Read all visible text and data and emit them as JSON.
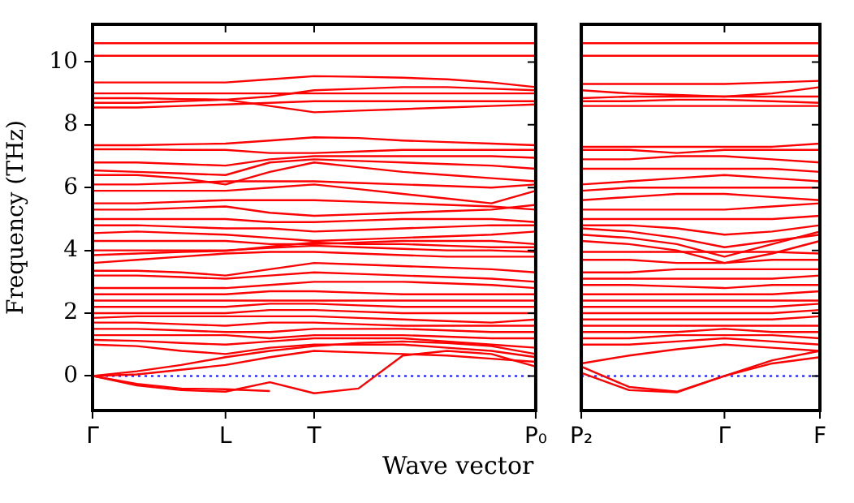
{
  "chart_data": [
    {
      "type": "line",
      "xlabel": "Wave vector",
      "ylabel": "Frequency (THz)",
      "categories": [
        "Γ",
        null,
        null,
        "L",
        null,
        "T",
        null,
        null,
        null,
        null,
        "P₀"
      ],
      "ylim": [
        -1.1,
        11.2
      ],
      "yticks": [
        0,
        2,
        4,
        6,
        8,
        10
      ],
      "marker": "none",
      "line_style": "solid",
      "ref_lines": [
        {
          "axis": "y",
          "value": 0,
          "color": "#0000ff",
          "line_style": "dotted"
        }
      ],
      "series": [
        {
          "color": "#ff0000",
          "values": [
            10.6,
            10.6,
            10.6,
            10.6,
            10.6,
            10.6,
            10.6,
            10.6,
            10.6,
            10.6,
            10.6
          ]
        },
        {
          "color": "#ff0000",
          "values": [
            10.2,
            10.2,
            10.2,
            10.2,
            10.2,
            10.2,
            10.2,
            10.2,
            10.2,
            10.2,
            10.2
          ]
        },
        {
          "color": "#ff0000",
          "values": [
            9.35,
            9.35,
            9.35,
            9.35,
            9.45,
            9.55,
            9.53,
            9.5,
            9.45,
            9.35,
            9.2
          ]
        },
        {
          "color": "#ff0000",
          "values": [
            9,
            9,
            9,
            9,
            9,
            9,
            9,
            9,
            9,
            9,
            9
          ]
        },
        {
          "color": "#ff0000",
          "values": [
            8.85,
            8.85,
            8.82,
            8.8,
            8.9,
            9.1,
            9.15,
            9.2,
            9.2,
            9.15,
            9.1
          ]
        },
        {
          "color": "#ff0000",
          "values": [
            8.7,
            8.7,
            8.75,
            8.8,
            8.6,
            8.4,
            8.45,
            8.5,
            8.55,
            8.6,
            8.65
          ]
        },
        {
          "color": "#ff0000",
          "values": [
            8.55,
            8.55,
            8.6,
            8.65,
            8.7,
            8.75,
            8.75,
            8.75,
            8.75,
            8.75,
            8.75
          ]
        },
        {
          "color": "#ff0000",
          "values": [
            7.35,
            7.35,
            7.38,
            7.4,
            7.5,
            7.6,
            7.58,
            7.5,
            7.45,
            7.4,
            7.35
          ]
        },
        {
          "color": "#ff0000",
          "values": [
            7.22,
            7.22,
            7.2,
            7.2,
            7.1,
            7.1,
            7.15,
            7.2,
            7.2,
            7.2,
            7.2
          ]
        },
        {
          "color": "#ff0000",
          "values": [
            6.8,
            6.8,
            6.75,
            6.7,
            6.9,
            7,
            7,
            7,
            7,
            7,
            6.95
          ]
        },
        {
          "color": "#ff0000",
          "values": [
            6.55,
            6.5,
            6.45,
            6.4,
            6.8,
            6.9,
            6.85,
            6.8,
            6.75,
            6.7,
            6.6
          ]
        },
        {
          "color": "#ff0000",
          "values": [
            6.4,
            6.4,
            6.3,
            6.1,
            6.5,
            6.8,
            6.65,
            6.5,
            6.4,
            6.3,
            6.2
          ]
        },
        {
          "color": "#ff0000",
          "values": [
            6.1,
            6.1,
            6.15,
            6.2,
            6.2,
            6.2,
            6.15,
            6.1,
            6.05,
            6,
            6.1
          ]
        },
        {
          "color": "#ff0000",
          "values": [
            5.9,
            5.9,
            5.9,
            5.9,
            6,
            6.1,
            5.95,
            5.8,
            5.65,
            5.5,
            5.9
          ]
        },
        {
          "color": "#ff0000",
          "values": [
            5.5,
            5.5,
            5.55,
            5.6,
            5.6,
            5.6,
            5.55,
            5.5,
            5.45,
            5.4,
            5.3
          ]
        },
        {
          "color": "#ff0000",
          "values": [
            5.3,
            5.3,
            5.35,
            5.4,
            5.2,
            5.1,
            5.15,
            5.2,
            5.25,
            5.3,
            5.45
          ]
        },
        {
          "color": "#ff0000",
          "values": [
            5,
            5,
            5,
            5,
            4.9,
            4.9,
            4.95,
            5,
            5,
            5,
            4.9
          ]
        },
        {
          "color": "#ff0000",
          "values": [
            4.8,
            4.8,
            4.75,
            4.7,
            4.7,
            4.6,
            4.65,
            4.7,
            4.75,
            4.8,
            4.8
          ]
        },
        {
          "color": "#ff0000",
          "values": [
            4.55,
            4.6,
            4.55,
            4.5,
            4.4,
            4.3,
            4.35,
            4.4,
            4.45,
            4.5,
            4.6
          ]
        },
        {
          "color": "#ff0000",
          "values": [
            4.3,
            4.3,
            4.3,
            4.3,
            4.2,
            4.2,
            4.25,
            4.3,
            4.3,
            4.3,
            4.2
          ]
        },
        {
          "color": "#ff0000",
          "values": [
            4,
            4,
            4,
            4,
            4.08,
            4.15,
            4.1,
            4.05,
            4,
            4,
            3.95
          ]
        },
        {
          "color": "#ff0000",
          "values": [
            3.85,
            3.9,
            3.95,
            3.98,
            4.12,
            4.25,
            4.2,
            4.2,
            4.15,
            4.1,
            4.1
          ]
        },
        {
          "color": "#ff0000",
          "values": [
            3.6,
            3.7,
            3.8,
            3.9,
            3.95,
            3.95,
            3.9,
            3.85,
            3.8,
            3.8,
            3.8
          ]
        },
        {
          "color": "#ff0000",
          "values": [
            3.35,
            3.35,
            3.3,
            3.2,
            3.4,
            3.6,
            3.55,
            3.5,
            3.45,
            3.4,
            3.3
          ]
        },
        {
          "color": "#ff0000",
          "values": [
            3.2,
            3.2,
            3.15,
            3.1,
            3.2,
            3.3,
            3.25,
            3.2,
            3.15,
            3.1,
            3
          ]
        },
        {
          "color": "#ff0000",
          "values": [
            2.8,
            2.8,
            2.8,
            2.8,
            2.9,
            3,
            3,
            3,
            2.95,
            2.9,
            2.8
          ]
        },
        {
          "color": "#ff0000",
          "values": [
            2.6,
            2.6,
            2.6,
            2.6,
            2.7,
            2.7,
            2.65,
            2.6,
            2.6,
            2.6,
            2.6
          ]
        },
        {
          "color": "#ff0000",
          "values": [
            2.4,
            2.4,
            2.4,
            2.4,
            2.4,
            2.4,
            2.4,
            2.4,
            2.4,
            2.4,
            2.4
          ]
        },
        {
          "color": "#ff0000",
          "values": [
            2.2,
            2.2,
            2.2,
            2.2,
            2.3,
            2.3,
            2.25,
            2.2,
            2.2,
            2.2,
            2.2
          ]
        },
        {
          "color": "#ff0000",
          "values": [
            2,
            2,
            2,
            2,
            2.1,
            2.1,
            2.05,
            2,
            2,
            2,
            2
          ]
        },
        {
          "color": "#ff0000",
          "values": [
            1.85,
            1.9,
            1.9,
            1.9,
            1.9,
            1.9,
            1.85,
            1.8,
            1.75,
            1.7,
            1.8
          ]
        },
        {
          "color": "#ff0000",
          "values": [
            1.7,
            1.7,
            1.65,
            1.6,
            1.7,
            1.7,
            1.65,
            1.6,
            1.6,
            1.6,
            1.6
          ]
        },
        {
          "color": "#ff0000",
          "values": [
            1.5,
            1.5,
            1.45,
            1.4,
            1.4,
            1.5,
            1.5,
            1.5,
            1.45,
            1.4,
            1.4
          ]
        },
        {
          "color": "#ff0000",
          "values": [
            1.3,
            1.3,
            1.3,
            1.3,
            1.2,
            1.3,
            1.3,
            1.3,
            1.25,
            1.2,
            1.2
          ]
        },
        {
          "color": "#ff0000",
          "values": [
            1.15,
            1.12,
            1.05,
            1,
            1.1,
            1.2,
            1.2,
            1.2,
            1.1,
            1,
            0.9
          ]
        },
        {
          "color": "#ff0000",
          "values": [
            1,
            0.95,
            0.8,
            0.7,
            0.9,
            1,
            1,
            1,
            0.9,
            0.8,
            0.6
          ]
        },
        {
          "color": "#ff0000",
          "values": [
            0,
            0.15,
            0.35,
            0.6,
            0.8,
            0.95,
            1.05,
            1.1,
            1.05,
            0.95,
            0.7
          ]
        },
        {
          "color": "#ff0000",
          "values": [
            0,
            0.05,
            0.2,
            0.35,
            0.6,
            0.8,
            0.75,
            0.7,
            0.65,
            0.55,
            0.45
          ]
        },
        {
          "color": "#ff0000",
          "values": [
            0,
            -0.3,
            -0.45,
            -0.5,
            -0.2,
            -0.55,
            -0.4,
            0.65,
            0.8,
            0.7,
            0.3
          ]
        },
        {
          "color": "#ff0000",
          "values": [
            0,
            -0.25,
            -0.4,
            -0.42,
            -0.48,
            null,
            null,
            null,
            null,
            null,
            null
          ]
        }
      ]
    },
    {
      "type": "line",
      "categories": [
        "P₂",
        null,
        null,
        "Γ",
        null,
        "F"
      ],
      "ylim": [
        -1.1,
        11.2
      ],
      "yticks": [
        0,
        2,
        4,
        6,
        8,
        10
      ],
      "tick_labels": "x",
      "marker": "none",
      "line_style": "solid",
      "ref_lines": [
        {
          "axis": "y",
          "value": 0,
          "color": "#0000ff",
          "line_style": "dotted"
        }
      ],
      "series": [
        {
          "color": "#ff0000",
          "values": [
            10.6,
            10.6,
            10.6,
            10.6,
            10.6,
            10.6
          ]
        },
        {
          "color": "#ff0000",
          "values": [
            10.2,
            10.2,
            10.2,
            10.2,
            10.2,
            10.2
          ]
        },
        {
          "color": "#ff0000",
          "values": [
            9.3,
            9.3,
            9.3,
            9.3,
            9.35,
            9.4
          ]
        },
        {
          "color": "#ff0000",
          "values": [
            9.1,
            9,
            8.95,
            8.9,
            9,
            9.2
          ]
        },
        {
          "color": "#ff0000",
          "values": [
            8.85,
            8.9,
            8.9,
            8.9,
            8.9,
            8.9
          ]
        },
        {
          "color": "#ff0000",
          "values": [
            8.75,
            8.75,
            8.8,
            8.8,
            8.75,
            8.7
          ]
        },
        {
          "color": "#ff0000",
          "values": [
            8.6,
            8.6,
            8.6,
            8.6,
            8.6,
            8.6
          ]
        },
        {
          "color": "#ff0000",
          "values": [
            7.3,
            7.3,
            7.3,
            7.3,
            7.3,
            7.4
          ]
        },
        {
          "color": "#ff0000",
          "values": [
            7.2,
            7.2,
            7.1,
            7.2,
            7.2,
            7.2
          ]
        },
        {
          "color": "#ff0000",
          "values": [
            6.9,
            6.9,
            7,
            7,
            6.9,
            6.8
          ]
        },
        {
          "color": "#ff0000",
          "values": [
            6.6,
            6.6,
            6.6,
            6.6,
            6.6,
            6.5
          ]
        },
        {
          "color": "#ff0000",
          "values": [
            6.1,
            6.2,
            6.3,
            6.4,
            6.3,
            6.2
          ]
        },
        {
          "color": "#ff0000",
          "values": [
            5.9,
            6,
            6,
            6,
            6,
            6
          ]
        },
        {
          "color": "#ff0000",
          "values": [
            5.6,
            5.7,
            5.8,
            5.8,
            5.7,
            5.6
          ]
        },
        {
          "color": "#ff0000",
          "values": [
            5.3,
            5.3,
            5.3,
            5.3,
            5.4,
            5.5
          ]
        },
        {
          "color": "#ff0000",
          "values": [
            5,
            5,
            5,
            5,
            5,
            5.1
          ]
        },
        {
          "color": "#ff0000",
          "values": [
            4.8,
            4.8,
            4.7,
            4.5,
            4.6,
            4.8
          ]
        },
        {
          "color": "#ff0000",
          "values": [
            4.7,
            4.6,
            4.4,
            4.1,
            4.3,
            4.5
          ]
        },
        {
          "color": "#ff0000",
          "values": [
            4.5,
            4.4,
            4.2,
            3.8,
            4.2,
            4.6
          ]
        },
        {
          "color": "#ff0000",
          "values": [
            4.3,
            4.2,
            4,
            3.6,
            3.9,
            4.3
          ]
        },
        {
          "color": "#ff0000",
          "values": [
            3.95,
            3.95,
            3.95,
            3.95,
            3.95,
            3.9
          ]
        },
        {
          "color": "#ff0000",
          "values": [
            3.7,
            3.7,
            3.6,
            3.6,
            3.7,
            3.7
          ]
        },
        {
          "color": "#ff0000",
          "values": [
            3.3,
            3.3,
            3.4,
            3.4,
            3.4,
            3.4
          ]
        },
        {
          "color": "#ff0000",
          "values": [
            3.1,
            3.1,
            3.1,
            3.1,
            3.1,
            3.2
          ]
        },
        {
          "color": "#ff0000",
          "values": [
            2.9,
            2.9,
            2.85,
            2.8,
            2.9,
            2.9
          ]
        },
        {
          "color": "#ff0000",
          "values": [
            2.6,
            2.6,
            2.6,
            2.6,
            2.6,
            2.7
          ]
        },
        {
          "color": "#ff0000",
          "values": [
            2.4,
            2.4,
            2.4,
            2.4,
            2.4,
            2.4
          ]
        },
        {
          "color": "#ff0000",
          "values": [
            2.2,
            2.2,
            2.2,
            2.2,
            2.2,
            2.3
          ]
        },
        {
          "color": "#ff0000",
          "values": [
            2,
            2,
            2,
            2,
            2,
            2.1
          ]
        },
        {
          "color": "#ff0000",
          "values": [
            1.8,
            1.8,
            1.8,
            1.8,
            1.8,
            1.9
          ]
        },
        {
          "color": "#ff0000",
          "values": [
            1.6,
            1.6,
            1.6,
            1.6,
            1.6,
            1.6
          ]
        },
        {
          "color": "#ff0000",
          "values": [
            1.4,
            1.4,
            1.4,
            1.5,
            1.4,
            1.4
          ]
        },
        {
          "color": "#ff0000",
          "values": [
            1.2,
            1.2,
            1.3,
            1.3,
            1.3,
            1.2
          ]
        },
        {
          "color": "#ff0000",
          "values": [
            1,
            1,
            1.1,
            1.2,
            1.1,
            1
          ]
        },
        {
          "color": "#ff0000",
          "values": [
            0.4,
            0.65,
            0.85,
            1,
            0.9,
            0.8
          ]
        },
        {
          "color": "#ff0000",
          "values": [
            0.3,
            -0.35,
            -0.5,
            0,
            0.4,
            0.6
          ]
        },
        {
          "color": "#ff0000",
          "values": [
            0.1,
            -0.45,
            -0.52,
            0,
            0.5,
            0.8
          ]
        }
      ]
    }
  ]
}
